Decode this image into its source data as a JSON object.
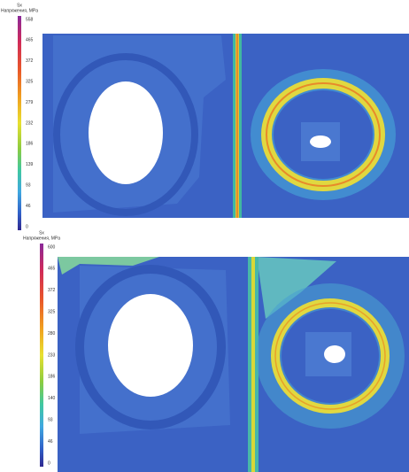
{
  "panels": [
    {
      "legend": {
        "title": "Sx",
        "subtitle": "Напряжения, MPa",
        "ticks": [
          "558",
          "465",
          "372",
          "325",
          "279",
          "232",
          "186",
          "139",
          "93",
          "46",
          "0"
        ]
      }
    },
    {
      "legend": {
        "title": "Sx",
        "subtitle": "Напряжения, MPa",
        "ticks": [
          "600",
          "465",
          "372",
          "325",
          "280",
          "233",
          "186",
          "140",
          "93",
          "46",
          "0"
        ]
      }
    }
  ]
}
